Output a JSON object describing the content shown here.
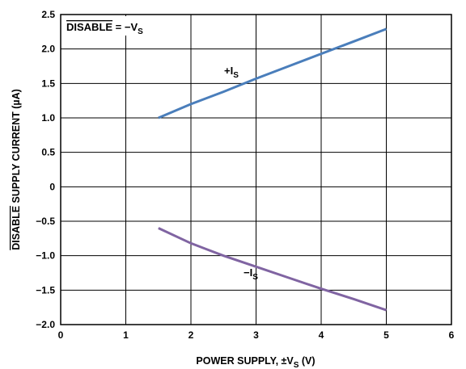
{
  "chart_data": {
    "type": "line",
    "xlabel": {
      "pre": "POWER SUPPLY, ±V",
      "sub": "S",
      "post": " (V)"
    },
    "ylabel": {
      "overline": "DISABLE",
      "rest": " SUPPLY CURRENT (µA)"
    },
    "xlim": [
      0,
      6
    ],
    "ylim": [
      -2.0,
      2.5
    ],
    "xticks": [
      0,
      1,
      2,
      3,
      4,
      5,
      6
    ],
    "yticks": [
      2.5,
      2.0,
      1.5,
      1.0,
      0.5,
      0,
      -0.5,
      -1.0,
      -1.5,
      -2.0
    ],
    "xtick_labels": [
      "0",
      "1",
      "2",
      "3",
      "4",
      "5",
      "6"
    ],
    "ytick_labels": [
      "2.5",
      "2.0",
      "1.5",
      "1.0",
      "0.5",
      "0",
      "−0.5",
      "−1.0",
      "−1.5",
      "−2.0"
    ],
    "grid": true,
    "annotation": {
      "overline": "DISABLE",
      "rest": " = −V",
      "sub": "S"
    },
    "series": [
      {
        "name": {
          "main": "+I",
          "sub": "S"
        },
        "color": "#4a7ebb",
        "x": [
          1.5,
          2.0,
          2.5,
          3.0,
          3.5,
          4.0,
          4.5,
          5.0
        ],
        "y": [
          1.0,
          1.2,
          1.38,
          1.57,
          1.75,
          1.93,
          2.11,
          2.29
        ]
      },
      {
        "name": {
          "main": "−I",
          "sub": "S"
        },
        "color": "#8064a2",
        "x": [
          1.5,
          2.0,
          2.5,
          3.0,
          3.5,
          4.0,
          4.5,
          5.0
        ],
        "y": [
          -0.6,
          -0.82,
          -1.0,
          -1.16,
          -1.32,
          -1.48,
          -1.63,
          -1.79
        ]
      }
    ]
  }
}
